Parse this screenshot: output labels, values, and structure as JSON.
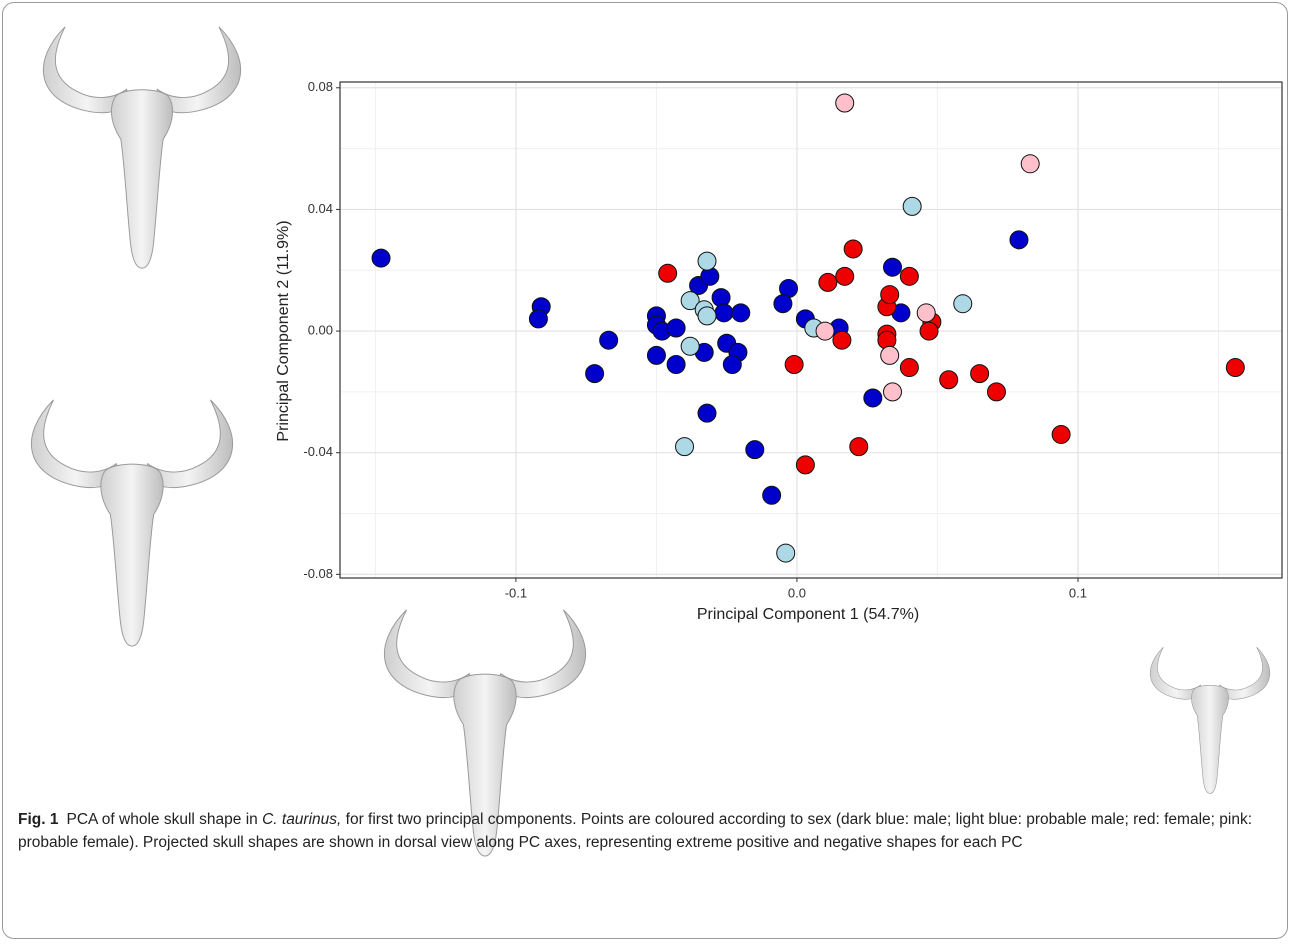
{
  "chart_data": {
    "type": "scatter",
    "xlabel": "Principal Component 1 (54.7%)",
    "ylabel": "Principal Component 2 (11.9%)",
    "xlim": [
      -0.1626,
      0.1726
    ],
    "ylim": [
      -0.0812,
      0.0819
    ],
    "xticks": [
      -0.1,
      {
        "value": 0,
        "label": "0.0"
      },
      0.1
    ],
    "yticks": [
      -0.08,
      -0.04,
      {
        "value": 0,
        "label": "0.00"
      },
      0.04,
      0.08
    ],
    "xminor": [
      -0.15,
      -0.05,
      0.05,
      0.15
    ],
    "yminor": [
      -0.06,
      -0.02,
      0.02,
      0.06
    ],
    "grid": true,
    "series": [
      {
        "color": "#0000cc",
        "x": [
          -0.148,
          -0.091,
          -0.092,
          -0.067,
          -0.072,
          -0.05,
          -0.05,
          -0.048,
          -0.043,
          -0.05,
          -0.043,
          -0.035,
          -0.031,
          -0.033,
          -0.027,
          -0.026,
          -0.02,
          -0.025,
          -0.021,
          -0.023,
          -0.032,
          -0.015,
          -0.009,
          -0.003,
          -0.005,
          0.003,
          0.015,
          0.027,
          0.034,
          0.037,
          0.079
        ],
        "values": [
          0.024,
          0.008,
          0.004,
          -0.003,
          -0.014,
          0.005,
          0.002,
          0.0,
          0.001,
          -0.008,
          -0.011,
          0.015,
          0.018,
          -0.007,
          0.011,
          0.006,
          0.006,
          -0.004,
          -0.007,
          -0.011,
          -0.027,
          -0.039,
          -0.054,
          0.014,
          0.009,
          0.004,
          0.001,
          -0.022,
          0.021,
          0.006,
          0.03
        ]
      },
      {
        "color": "#add8e6",
        "x": [
          -0.032,
          -0.038,
          -0.033,
          -0.032,
          -0.038,
          -0.04,
          0.006,
          0.041,
          0.059,
          -0.004
        ],
        "values": [
          0.023,
          0.01,
          0.007,
          0.005,
          -0.005,
          -0.038,
          0.001,
          0.041,
          0.009,
          -0.073
        ]
      },
      {
        "color": "#ee0000",
        "x": [
          -0.046,
          -0.001,
          0.003,
          0.011,
          0.02,
          0.017,
          0.016,
          0.022,
          0.032,
          0.033,
          0.032,
          0.032,
          0.04,
          0.04,
          0.048,
          0.047,
          0.054,
          0.065,
          0.071,
          0.094,
          0.156
        ],
        "values": [
          0.019,
          -0.011,
          -0.044,
          0.016,
          0.027,
          0.018,
          -0.003,
          -0.038,
          0.008,
          0.012,
          -0.001,
          -0.003,
          0.018,
          -0.012,
          0.003,
          0.0,
          -0.016,
          -0.014,
          -0.02,
          -0.034,
          -0.012
        ]
      },
      {
        "color": "#ffc0cb",
        "x": [
          0.017,
          0.083,
          0.046,
          0.01,
          0.033,
          0.034
        ],
        "values": [
          0.075,
          0.055,
          0.006,
          0.0,
          -0.008,
          -0.02
        ]
      }
    ],
    "caption_label": "Fig. 1",
    "caption_pre": "PCA of whole skull shape in",
    "caption_species": "C. taurinus,",
    "caption_post": "for first two principal components. Points are coloured according to sex (dark blue: male; light blue: probable male; red: female; pink: probable female). Projected skull shapes are shown in dorsal view along PC axes, representing extreme positive and negative shapes for each PC"
  }
}
